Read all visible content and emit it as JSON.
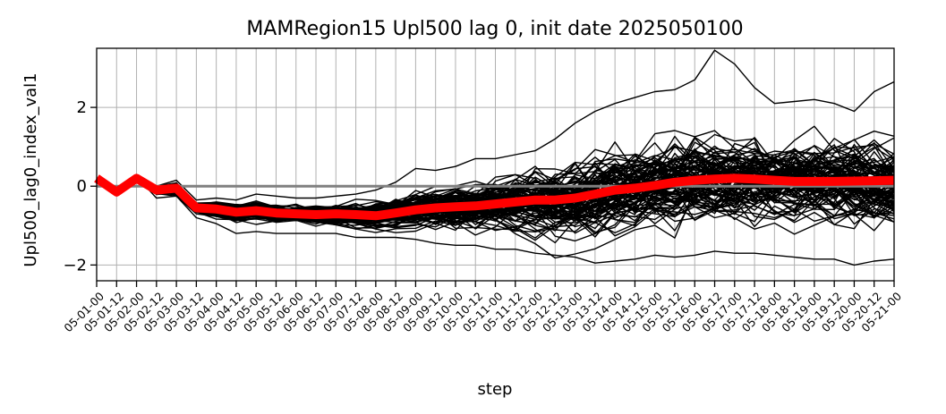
{
  "chart_data": {
    "type": "line",
    "title": "MAMRegion15 Upl500 lag 0, init date 2025050100",
    "xlabel": "step",
    "ylabel": "Upl500_lag0_index_val1",
    "categories": [
      "05-01-00",
      "05-01-12",
      "05-02-00",
      "05-02-12",
      "05-03-00",
      "05-03-12",
      "05-04-00",
      "05-04-12",
      "05-05-00",
      "05-05-12",
      "05-06-00",
      "05-06-12",
      "05-07-00",
      "05-07-12",
      "05-08-00",
      "05-08-12",
      "05-09-00",
      "05-09-12",
      "05-10-00",
      "05-10-12",
      "05-11-00",
      "05-11-12",
      "05-12-00",
      "05-12-12",
      "05-13-00",
      "05-13-12",
      "05-14-00",
      "05-14-12",
      "05-15-00",
      "05-15-12",
      "05-16-00",
      "05-16-12",
      "05-17-00",
      "05-17-12",
      "05-18-00",
      "05-18-12",
      "05-19-00",
      "05-19-12",
      "05-20-00",
      "05-20-12",
      "05-21-00"
    ],
    "yticks": [
      -2,
      0,
      2
    ],
    "ylim": [
      -2.4,
      3.5
    ],
    "grid": true,
    "reference_line": {
      "y": 0,
      "color": "#808080"
    },
    "ensemble": {
      "color": "#000000",
      "member_count": 100,
      "spread": [
        0,
        0,
        0,
        0.08,
        0.14,
        0.1,
        0.14,
        0.18,
        0.2,
        0.2,
        0.2,
        0.2,
        0.22,
        0.24,
        0.27,
        0.3,
        0.35,
        0.4,
        0.45,
        0.5,
        0.55,
        0.6,
        0.65,
        0.7,
        0.75,
        0.78,
        0.8,
        0.82,
        0.84,
        0.85,
        0.85,
        0.85,
        0.86,
        0.86,
        0.86,
        0.86,
        0.86,
        0.86,
        0.85,
        0.85,
        0.85
      ],
      "outlier_max": [
        0.2,
        -0.15,
        0.25,
        0.0,
        0.15,
        -0.35,
        -0.3,
        -0.35,
        -0.2,
        -0.25,
        -0.3,
        -0.3,
        -0.25,
        -0.2,
        -0.1,
        0.1,
        0.45,
        0.4,
        0.5,
        0.7,
        0.7,
        0.8,
        0.9,
        1.2,
        1.6,
        1.9,
        2.1,
        2.25,
        2.4,
        2.45,
        2.7,
        3.45,
        3.1,
        2.5,
        2.1,
        2.15,
        2.2,
        2.1,
        1.9,
        2.4,
        2.65
      ],
      "outlier_min": [
        0.2,
        -0.15,
        0.25,
        -0.3,
        -0.25,
        -0.8,
        -0.95,
        -1.2,
        -1.15,
        -1.2,
        -1.2,
        -1.2,
        -1.2,
        -1.3,
        -1.3,
        -1.3,
        -1.35,
        -1.45,
        -1.5,
        -1.5,
        -1.6,
        -1.6,
        -1.7,
        -1.75,
        -1.8,
        -1.95,
        -1.9,
        -1.85,
        -1.75,
        -1.8,
        -1.75,
        -1.65,
        -1.7,
        -1.7,
        -1.75,
        -1.8,
        -1.85,
        -1.85,
        -2.0,
        -1.9,
        -1.85
      ]
    },
    "series": [
      {
        "color": "#ff0000",
        "values": [
          0.2,
          -0.15,
          0.2,
          -0.1,
          -0.05,
          -0.55,
          -0.58,
          -0.66,
          -0.62,
          -0.68,
          -0.7,
          -0.72,
          -0.7,
          -0.72,
          -0.75,
          -0.68,
          -0.6,
          -0.55,
          -0.52,
          -0.5,
          -0.45,
          -0.4,
          -0.35,
          -0.35,
          -0.3,
          -0.2,
          -0.1,
          -0.05,
          0.02,
          0.1,
          0.15,
          0.18,
          0.2,
          0.18,
          0.15,
          0.12,
          0.12,
          0.12,
          0.13,
          0.14,
          0.15
        ]
      }
    ]
  }
}
